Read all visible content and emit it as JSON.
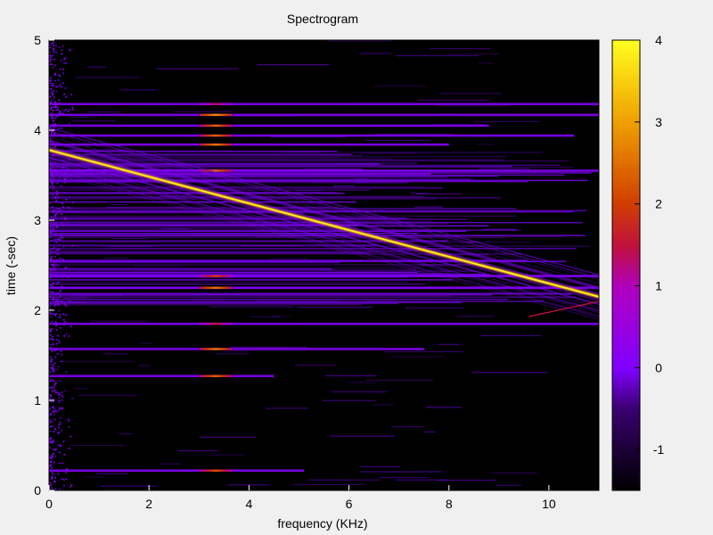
{
  "chart_data": {
    "type": "heatmap",
    "title": "Spectrogram",
    "xlabel": "frequency (KHz)",
    "ylabel": "time (-sec)",
    "xlim": [
      0,
      11
    ],
    "ylim": [
      0,
      5
    ],
    "x_ticks": [
      "0",
      "2",
      "4",
      "6",
      "8",
      "10"
    ],
    "y_ticks": [
      "0",
      "1",
      "2",
      "3",
      "4",
      "5"
    ],
    "colorbar": {
      "range": [
        -1.5,
        4
      ],
      "ticks": [
        "-1",
        "0",
        "1",
        "2",
        "3",
        "4"
      ],
      "colormap": [
        "#000000",
        "#5a00a8",
        "#8a00ff",
        "#c0205a",
        "#e05000",
        "#ffd000",
        "#ffff00"
      ]
    },
    "chirp": {
      "start": [
        0,
        3.78
      ],
      "end": [
        11,
        2.15
      ],
      "peak_value": 4
    },
    "secondary_chirp": {
      "start": [
        9.6,
        1.93
      ],
      "end": [
        11,
        2.1
      ]
    },
    "harmonic_rows": [
      {
        "t": 0.22,
        "x_max": 5.1,
        "hot_freq": 3.3,
        "hot_value": 2.2
      },
      {
        "t": 1.27,
        "x_max": 4.5,
        "hot_freq": 3.3,
        "hot_value": 2.4
      },
      {
        "t": 1.57,
        "x_max": 7.5,
        "hot_freq": 3.3,
        "hot_value": 2.6
      },
      {
        "t": 1.85,
        "x_max": 11,
        "hot_freq": 3.3,
        "hot_value": 1.6
      },
      {
        "t": 2.25,
        "x_max": 11,
        "hot_freq": 3.3,
        "hot_value": 2.6
      },
      {
        "t": 2.38,
        "x_max": 11,
        "hot_freq": 3.3,
        "hot_value": 2.0
      },
      {
        "t": 3.55,
        "x_max": 11,
        "hot_freq": 3.3,
        "hot_value": 2.4
      },
      {
        "t": 3.84,
        "x_max": 8.0,
        "hot_freq": 3.3,
        "hot_value": 2.6
      },
      {
        "t": 3.94,
        "x_max": 10.5,
        "hot_freq": 3.3,
        "hot_value": 2.4
      },
      {
        "t": 4.05,
        "x_max": 8.8,
        "hot_freq": 3.3,
        "hot_value": 2.4
      },
      {
        "t": 4.17,
        "x_max": 11,
        "hot_freq": 3.3,
        "hot_value": 2.8
      },
      {
        "t": 4.29,
        "x_max": 11,
        "hot_freq": 3.3,
        "hot_value": 1.4
      }
    ],
    "broadband_band": {
      "t_min": 2.05,
      "t_max": 3.78
    }
  }
}
